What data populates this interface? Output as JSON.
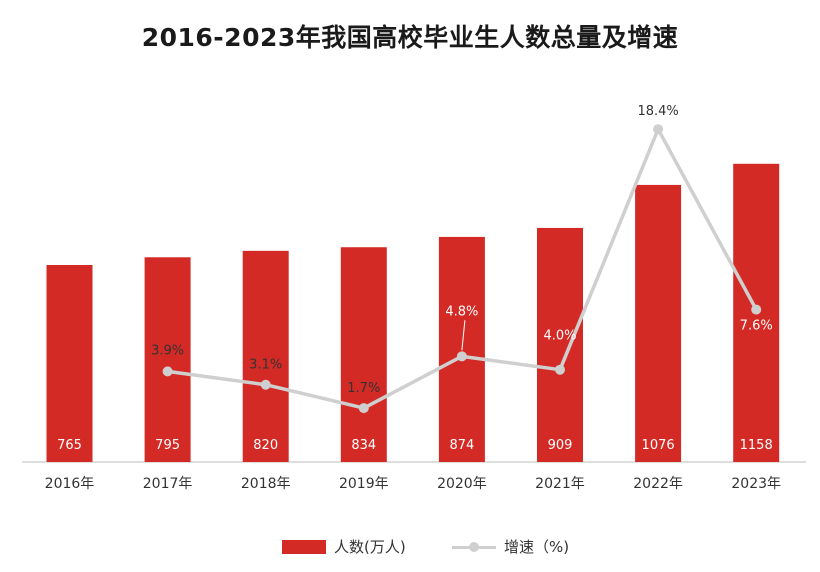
{
  "title": "2016-2023年我国高校毕业生人数总量及增速",
  "chart_data": {
    "type": "bar",
    "title": "2016-2023年我国高校毕业生人数总量及增速",
    "categories": [
      "2016年",
      "2017年",
      "2018年",
      "2019年",
      "2020年",
      "2021年",
      "2022年",
      "2023年"
    ],
    "series": [
      {
        "name": "人数(万人)",
        "type": "bar",
        "values": [
          765,
          795,
          820,
          834,
          874,
          909,
          1076,
          1158
        ],
        "labels": [
          "765",
          "795",
          "820",
          "834",
          "874",
          "909",
          "1076",
          "1158"
        ],
        "color": "#d42a26"
      },
      {
        "name": "增速（%)",
        "type": "line",
        "values": [
          null,
          3.9,
          3.1,
          1.7,
          4.8,
          4.0,
          18.4,
          7.6
        ],
        "labels": [
          "",
          "3.9%",
          "3.1%",
          "1.7%",
          "4.8%",
          "4.0%",
          "18.4%",
          "7.6%"
        ],
        "color": "#cfcfcf"
      }
    ],
    "legend_position": "bottom",
    "grid": false
  },
  "legend": {
    "bar_label": "人数(万人)",
    "line_label": "增速（%)"
  }
}
